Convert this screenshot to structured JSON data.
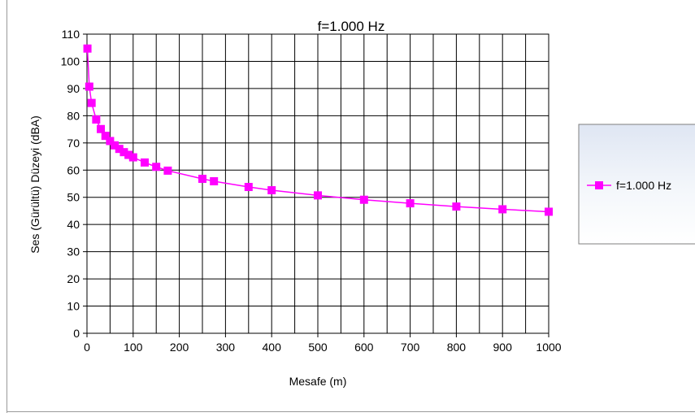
{
  "chart_data": {
    "type": "line",
    "title": "f=1.000 Hz",
    "xlabel": "Mesafe (m)",
    "ylabel": "Ses (Gürültü) Düzeyi (dBA)",
    "xlim": [
      0,
      1000
    ],
    "ylim": [
      0,
      110
    ],
    "x_ticks": [
      "0",
      "100",
      "200",
      "300",
      "400",
      "500",
      "600",
      "700",
      "800",
      "900",
      "1000"
    ],
    "y_ticks": [
      "0",
      "10",
      "20",
      "30",
      "40",
      "50",
      "60",
      "70",
      "80",
      "90",
      "100",
      "110"
    ],
    "x_minor_step": 50,
    "y_step": 10,
    "grid": true,
    "legend_position": "right",
    "series": [
      {
        "name": "f=1.000 Hz",
        "color": "#ff00ff",
        "marker": "square",
        "x": [
          1,
          5,
          10,
          20,
          30,
          40,
          50,
          60,
          70,
          80,
          90,
          100,
          125,
          150,
          175,
          250,
          275,
          350,
          400,
          500,
          600,
          700,
          800,
          900,
          1000
        ],
        "y": [
          104.7,
          90.7,
          84.7,
          78.6,
          75.1,
          72.6,
          70.7,
          69.1,
          67.8,
          66.6,
          65.6,
          64.7,
          62.8,
          61.2,
          59.8,
          56.8,
          55.9,
          53.8,
          52.6,
          50.7,
          49.1,
          47.8,
          46.6,
          45.6,
          44.7
        ]
      }
    ]
  }
}
